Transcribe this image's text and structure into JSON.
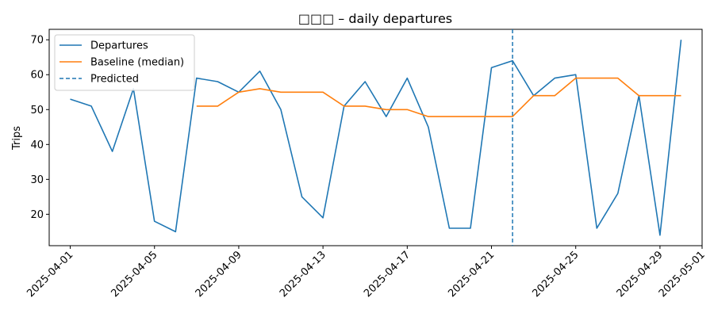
{
  "chart_data": {
    "type": "line",
    "title": "□□□ – daily departures",
    "xlabel": "",
    "ylabel": "Trips",
    "x": [
      "2025-04-01",
      "2025-04-02",
      "2025-04-03",
      "2025-04-04",
      "2025-04-05",
      "2025-04-06",
      "2025-04-07",
      "2025-04-08",
      "2025-04-09",
      "2025-04-10",
      "2025-04-11",
      "2025-04-12",
      "2025-04-13",
      "2025-04-14",
      "2025-04-15",
      "2025-04-16",
      "2025-04-17",
      "2025-04-18",
      "2025-04-19",
      "2025-04-20",
      "2025-04-21",
      "2025-04-22",
      "2025-04-23",
      "2025-04-24",
      "2025-04-25",
      "2025-04-26",
      "2025-04-27",
      "2025-04-28",
      "2025-04-29",
      "2025-04-30"
    ],
    "series": [
      {
        "name": "Departures",
        "color": "#1f77b4",
        "values": [
          53,
          51,
          38,
          56,
          18,
          15,
          59,
          58,
          55,
          61,
          50,
          25,
          19,
          51,
          58,
          48,
          59,
          45,
          16,
          16,
          62,
          64,
          54,
          59,
          60,
          16,
          26,
          54,
          14,
          70
        ]
      },
      {
        "name": "Baseline (median)",
        "color": "#ff7f0e",
        "values": [
          null,
          null,
          null,
          null,
          null,
          null,
          51,
          51,
          55,
          56,
          55,
          55,
          55,
          51,
          51,
          50,
          50,
          48,
          48,
          48,
          48,
          48,
          54,
          54,
          59,
          59,
          59,
          54,
          54,
          54
        ]
      }
    ],
    "marker": {
      "name": "Predicted",
      "x": "2025-04-22",
      "color": "#1f77b4",
      "style": "dashed"
    },
    "xticks": [
      "2025-04-01",
      "2025-04-05",
      "2025-04-09",
      "2025-04-13",
      "2025-04-17",
      "2025-04-21",
      "2025-04-25",
      "2025-04-29",
      "2025-05-01"
    ],
    "yticks": [
      20,
      30,
      40,
      50,
      60,
      70
    ],
    "ylim": [
      11,
      73
    ],
    "xlim": [
      "2025-03-31",
      "2025-05-01"
    ],
    "grid": false,
    "legend": "top-left"
  }
}
